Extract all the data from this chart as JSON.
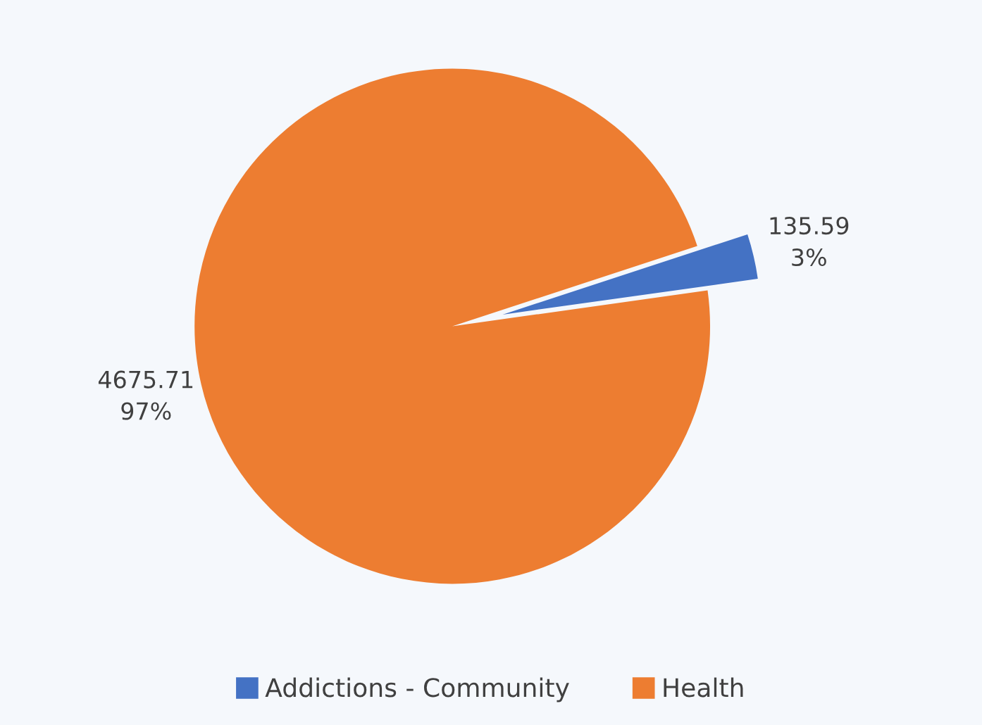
{
  "chart_data": {
    "type": "pie",
    "categories": [
      "Addictions - Community",
      "Health"
    ],
    "values": [
      135.59,
      4675.71
    ],
    "colors": [
      "#4472c4",
      "#ed7d31"
    ],
    "value_labels": [
      "135.59\n3%",
      "4675.71\n97%"
    ],
    "legend": "bottom"
  }
}
